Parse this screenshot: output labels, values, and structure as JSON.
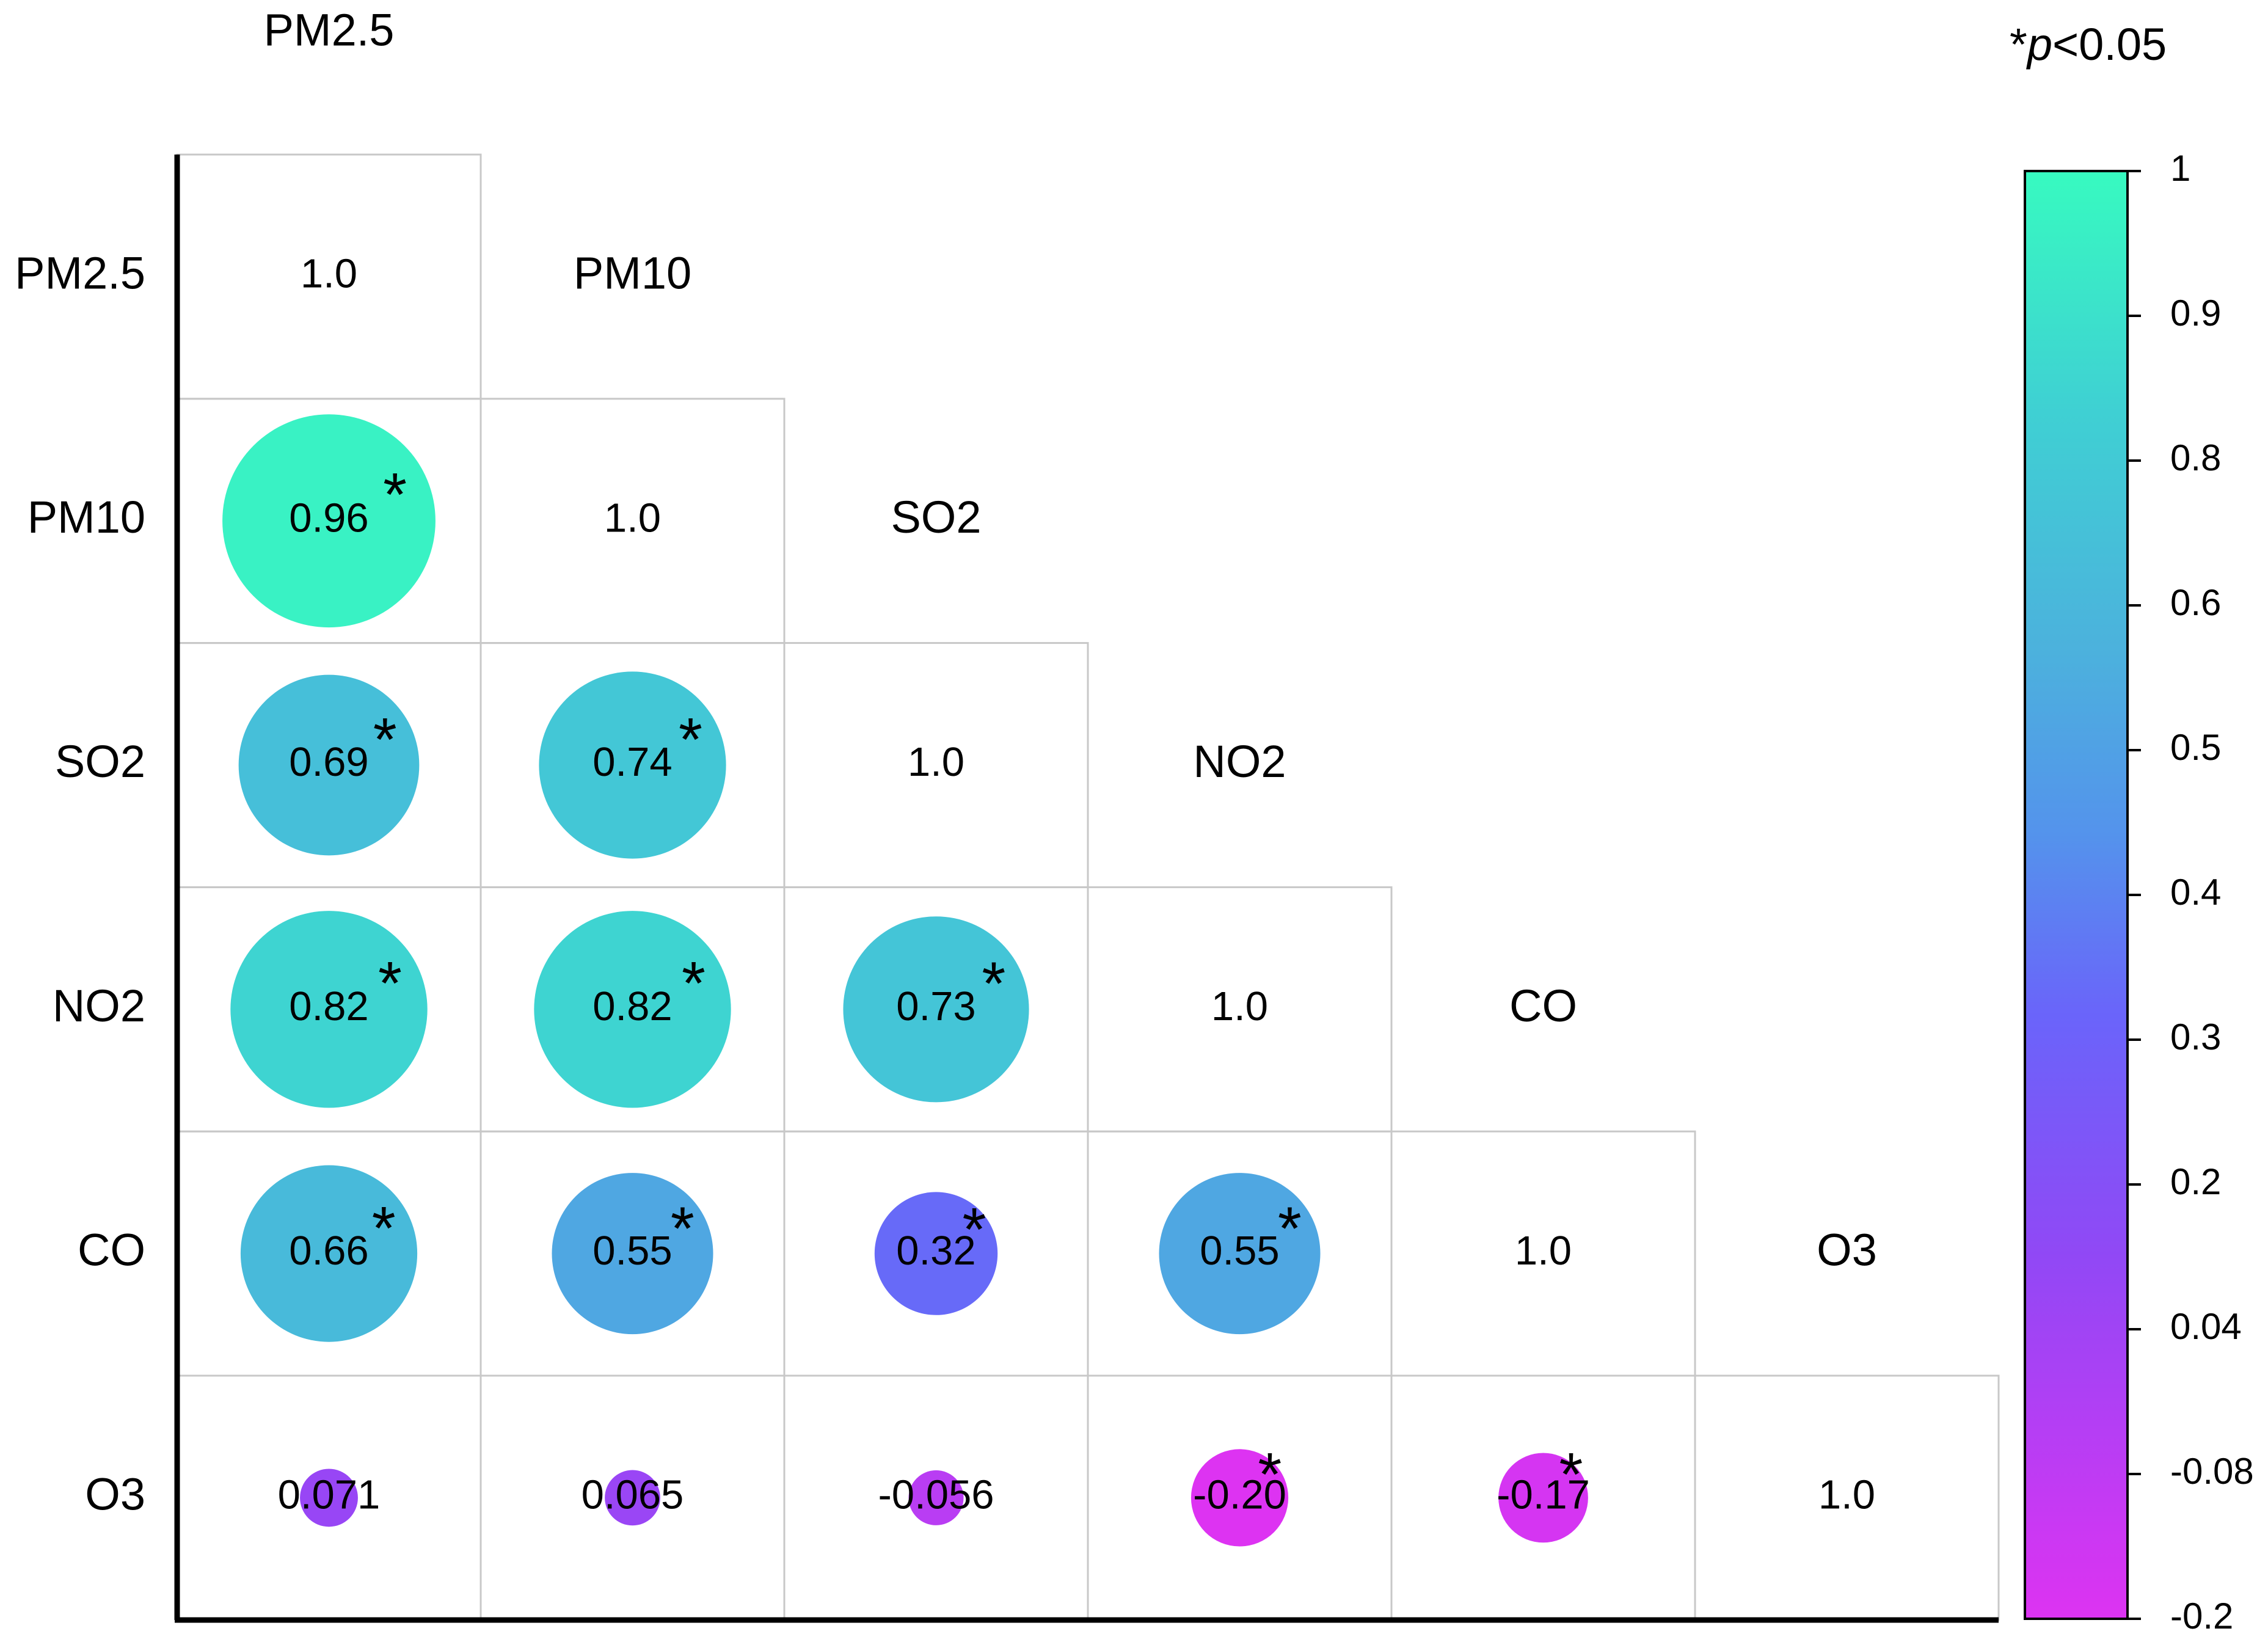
{
  "chart_data": {
    "type": "heatmap",
    "subtype": "lower-triangular correlation matrix (circle size and colour encode r)",
    "variables": [
      "PM2.5",
      "PM10",
      "SO2",
      "NO2",
      "CO",
      "O3"
    ],
    "diagonal_label": "1.0",
    "cells": [
      {
        "row": 1,
        "col": 0,
        "value": 0.96,
        "label": "0.96",
        "significant": true
      },
      {
        "row": 2,
        "col": 0,
        "value": 0.69,
        "label": "0.69",
        "significant": true
      },
      {
        "row": 2,
        "col": 1,
        "value": 0.74,
        "label": "0.74",
        "significant": true
      },
      {
        "row": 3,
        "col": 0,
        "value": 0.82,
        "label": "0.82",
        "significant": true
      },
      {
        "row": 3,
        "col": 1,
        "value": 0.82,
        "label": "0.82",
        "significant": true
      },
      {
        "row": 3,
        "col": 2,
        "value": 0.73,
        "label": "0.73",
        "significant": true
      },
      {
        "row": 4,
        "col": 0,
        "value": 0.66,
        "label": "0.66",
        "significant": true
      },
      {
        "row": 4,
        "col": 1,
        "value": 0.55,
        "label": "0.55",
        "significant": true
      },
      {
        "row": 4,
        "col": 2,
        "value": 0.32,
        "label": "0.32",
        "significant": true
      },
      {
        "row": 4,
        "col": 3,
        "value": 0.55,
        "label": "0.55",
        "significant": true
      },
      {
        "row": 5,
        "col": 0,
        "value": 0.071,
        "label": "0.071",
        "significant": false
      },
      {
        "row": 5,
        "col": 1,
        "value": 0.065,
        "label": "0.065",
        "significant": false
      },
      {
        "row": 5,
        "col": 2,
        "value": -0.056,
        "label": "-0.056",
        "significant": false
      },
      {
        "row": 5,
        "col": 3,
        "value": -0.2,
        "label": "-0.20",
        "significant": true
      },
      {
        "row": 5,
        "col": 4,
        "value": -0.17,
        "label": "-0.17",
        "significant": true
      }
    ],
    "significance_marker": "*",
    "significance_note": {
      "star": "*",
      "p": "p",
      "rest": "<0.05"
    },
    "colorbar": {
      "ticks": [
        "1",
        "0.9",
        "0.8",
        "0.6",
        "0.5",
        "0.4",
        "0.3",
        "0.2",
        "0.04",
        "-0.08",
        "-0.2"
      ],
      "range": [
        -0.2,
        1
      ],
      "colors": [
        {
          "value": -0.2,
          "color": "#dd33f2"
        },
        {
          "value": 0.1,
          "color": "#9148f5"
        },
        {
          "value": 0.3,
          "color": "#6a64fa"
        },
        {
          "value": 0.45,
          "color": "#5493ec"
        },
        {
          "value": 0.6,
          "color": "#4cb1dd"
        },
        {
          "value": 0.8,
          "color": "#3fd0d3"
        },
        {
          "value": 1.0,
          "color": "#37fac0"
        }
      ]
    },
    "grid": true,
    "legend_position": "right"
  }
}
